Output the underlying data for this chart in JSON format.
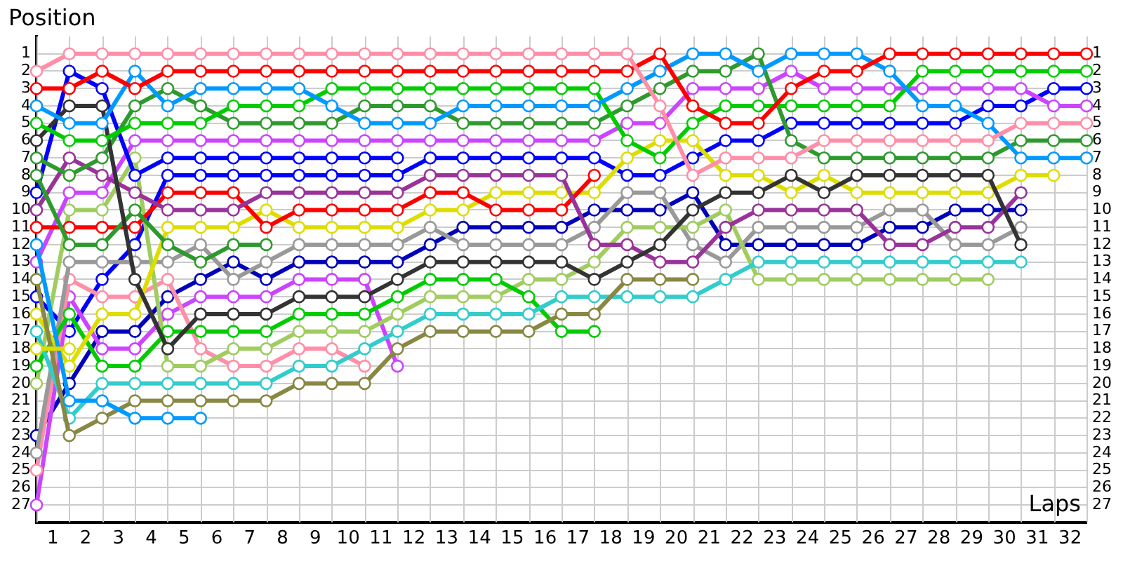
{
  "chart_data": {
    "type": "line",
    "xlabel": "Laps",
    "ylabel": "Position",
    "grid": true,
    "legend": false,
    "marker": "circle",
    "line_style": "solid",
    "x": [
      0,
      1,
      2,
      3,
      4,
      5,
      6,
      7,
      8,
      9,
      10,
      11,
      12,
      13,
      14,
      15,
      16,
      17,
      18,
      19,
      20,
      21,
      22,
      23,
      24,
      25,
      26,
      27,
      28,
      29,
      30,
      31,
      32
    ],
    "xlim": [
      0,
      32
    ],
    "xticks": [
      {
        "value": 0.5,
        "label": "1"
      },
      {
        "value": 1.5,
        "label": "2"
      },
      {
        "value": 2.5,
        "label": "3"
      },
      {
        "value": 3.5,
        "label": "4"
      },
      {
        "value": 4.5,
        "label": "5"
      },
      {
        "value": 5.5,
        "label": "6"
      },
      {
        "value": 6.5,
        "label": "7"
      },
      {
        "value": 7.5,
        "label": "8"
      },
      {
        "value": 8.5,
        "label": "9"
      },
      {
        "value": 9.5,
        "label": "10"
      },
      {
        "value": 10.5,
        "label": "11"
      },
      {
        "value": 11.5,
        "label": "12"
      },
      {
        "value": 12.5,
        "label": "13"
      },
      {
        "value": 13.5,
        "label": "14"
      },
      {
        "value": 14.5,
        "label": "15"
      },
      {
        "value": 15.5,
        "label": "16"
      },
      {
        "value": 16.5,
        "label": "17"
      },
      {
        "value": 17.5,
        "label": "18"
      },
      {
        "value": 18.5,
        "label": "19"
      },
      {
        "value": 19.5,
        "label": "20"
      },
      {
        "value": 20.5,
        "label": "21"
      },
      {
        "value": 21.5,
        "label": "22"
      },
      {
        "value": 22.5,
        "label": "23"
      },
      {
        "value": 23.5,
        "label": "24"
      },
      {
        "value": 24.5,
        "label": "25"
      },
      {
        "value": 25.5,
        "label": "26"
      },
      {
        "value": 26.5,
        "label": "27"
      },
      {
        "value": 27.5,
        "label": "28"
      },
      {
        "value": 28.5,
        "label": "29"
      },
      {
        "value": 29.5,
        "label": "30"
      },
      {
        "value": 30.5,
        "label": "31"
      },
      {
        "value": 31.5,
        "label": "32"
      }
    ],
    "ylim": [
      28,
      0
    ],
    "yticks": [
      1,
      2,
      3,
      4,
      5,
      6,
      7,
      8,
      9,
      10,
      11,
      12,
      13,
      14,
      15,
      16,
      17,
      18,
      19,
      20,
      21,
      22,
      23,
      24,
      25,
      26,
      27
    ],
    "y2lim": [
      28,
      0
    ],
    "y2ticks": [
      1,
      2,
      3,
      4,
      5,
      6,
      7,
      8,
      9,
      10,
      11,
      12,
      13,
      14,
      15,
      16,
      17,
      18,
      19,
      20,
      21,
      22,
      23,
      24,
      25,
      26,
      27
    ],
    "series": [
      {
        "color": "#dddd00",
        "values": [
          18,
          18,
          null,
          null,
          null,
          null,
          null,
          null,
          null,
          null,
          null,
          null,
          null,
          null,
          null,
          null,
          null,
          null,
          null,
          null,
          null,
          null,
          null,
          null,
          null,
          null,
          null,
          null,
          null,
          null,
          null,
          null,
          null
        ]
      },
      {
        "color": "#ff8fa8",
        "values": [
          2,
          1,
          1,
          1,
          1,
          1,
          1,
          1,
          1,
          1,
          1,
          1,
          1,
          1,
          1,
          1,
          1,
          1,
          1,
          4,
          8,
          7,
          7,
          7,
          6,
          6,
          6,
          6,
          6,
          6,
          5,
          5,
          5
        ]
      },
      {
        "color": "#ff0000",
        "values": [
          3,
          3,
          2,
          3,
          2,
          2,
          2,
          2,
          2,
          2,
          2,
          2,
          2,
          2,
          2,
          2,
          2,
          2,
          2,
          1,
          4,
          5,
          5,
          3,
          2,
          2,
          1,
          1,
          1,
          1,
          1,
          1,
          1
        ]
      },
      {
        "color": "#0099ff",
        "values": [
          4,
          5,
          5,
          2,
          4,
          3,
          3,
          3,
          3,
          4,
          5,
          5,
          5,
          4,
          4,
          4,
          4,
          4,
          3,
          2,
          1,
          1,
          2,
          1,
          1,
          1,
          2,
          4,
          4,
          5,
          7,
          7,
          7
        ]
      },
      {
        "color": "#00cc00",
        "values": [
          5,
          6,
          6,
          5,
          5,
          5,
          4,
          4,
          4,
          3,
          3,
          3,
          3,
          3,
          3,
          3,
          3,
          3,
          6,
          7,
          5,
          4,
          4,
          4,
          4,
          4,
          4,
          2,
          2,
          2,
          2,
          2,
          2
        ]
      },
      {
        "color": "#333333",
        "values": [
          6,
          4,
          4,
          14,
          18,
          16,
          16,
          16,
          15,
          15,
          15,
          14,
          13,
          13,
          13,
          13,
          13,
          14,
          13,
          12,
          10,
          9,
          9,
          8,
          9,
          8,
          8,
          8,
          8,
          8,
          12,
          null,
          null
        ]
      },
      {
        "color": "#2e9a2e",
        "values": [
          7,
          8,
          7,
          4,
          3,
          4,
          5,
          5,
          5,
          5,
          4,
          4,
          4,
          5,
          5,
          5,
          5,
          5,
          4,
          3,
          2,
          2,
          1,
          6,
          7,
          7,
          7,
          7,
          7,
          7,
          6,
          6,
          6
        ]
      },
      {
        "color": "#2e9a2e",
        "values": [
          8,
          12,
          12,
          10,
          12,
          13,
          12,
          12,
          null,
          null,
          null,
          null,
          null,
          null,
          null,
          null,
          null,
          null,
          null,
          null,
          null,
          null,
          null,
          null,
          null,
          null,
          null,
          null,
          null,
          null,
          null,
          null,
          null
        ]
      },
      {
        "color": "#0000ff",
        "values": [
          9,
          2,
          3,
          8,
          7,
          7,
          7,
          7,
          7,
          7,
          7,
          7,
          null,
          null,
          null,
          null,
          null,
          null,
          null,
          null,
          null,
          null,
          null,
          null,
          null,
          null,
          null,
          null,
          null,
          null,
          null,
          null,
          null
        ]
      },
      {
        "color": "#993399",
        "values": [
          10,
          7,
          8,
          9,
          10,
          10,
          10,
          9,
          9,
          9,
          9,
          9,
          8,
          8,
          8,
          8,
          8,
          12,
          12,
          13,
          13,
          11,
          10,
          10,
          10,
          10,
          12,
          12,
          11,
          11,
          9,
          null,
          null
        ]
      },
      {
        "color": "#ff0000",
        "values": [
          11,
          11,
          11,
          11,
          9,
          9,
          9,
          11,
          10,
          10,
          10,
          10,
          9,
          9,
          10,
          10,
          10,
          8,
          null,
          null,
          null,
          null,
          null,
          null,
          null,
          null,
          null,
          null,
          null,
          null,
          null,
          null,
          null
        ]
      },
      {
        "color": "#0099ff",
        "values": [
          12,
          21,
          21,
          22,
          22,
          22,
          null,
          null,
          null,
          null,
          null,
          null,
          null,
          null,
          null,
          null,
          null,
          null,
          null,
          null,
          null,
          null,
          null,
          null,
          null,
          null,
          null,
          null,
          null,
          null,
          null,
          null,
          null
        ]
      },
      {
        "color": "#cc44ff",
        "values": [
          13,
          9,
          9,
          6,
          6,
          6,
          6,
          6,
          6,
          6,
          6,
          6,
          6,
          6,
          6,
          6,
          6,
          6,
          5,
          5,
          3,
          3,
          3,
          2,
          3,
          3,
          3,
          3,
          3,
          3,
          3,
          4,
          4
        ]
      },
      {
        "color": "#888844",
        "values": [
          14,
          23,
          22,
          21,
          21,
          21,
          21,
          21,
          20,
          20,
          20,
          18,
          17,
          17,
          17,
          17,
          16,
          16,
          14,
          14,
          14,
          null,
          null,
          null,
          null,
          null,
          null,
          null,
          null,
          null,
          null,
          null,
          null
        ]
      },
      {
        "color": "#dddd00",
        "values": [
          16,
          19,
          16,
          16,
          11,
          11,
          11,
          10,
          11,
          11,
          11,
          11,
          10,
          10,
          9,
          9,
          9,
          9,
          7,
          6,
          6,
          8,
          8,
          9,
          8,
          9,
          9,
          9,
          9,
          9,
          8,
          8,
          null
        ]
      },
      {
        "color": "#33cccc",
        "values": [
          17,
          22,
          20,
          20,
          20,
          20,
          20,
          20,
          19,
          19,
          18,
          17,
          16,
          16,
          16,
          16,
          15,
          15,
          15,
          15,
          15,
          14,
          13,
          13,
          13,
          13,
          13,
          13,
          13,
          13,
          13,
          null,
          null
        ]
      },
      {
        "color": "#00cc00",
        "values": [
          19,
          16,
          19,
          19,
          17,
          17,
          17,
          17,
          16,
          16,
          16,
          15,
          14,
          14,
          14,
          15,
          17,
          17,
          null,
          null,
          null,
          null,
          null,
          null,
          null,
          null,
          null,
          null,
          null,
          null,
          null,
          null,
          null
        ]
      },
      {
        "color": "#a0cc60",
        "values": [
          20,
          10,
          10,
          7,
          19,
          19,
          18,
          18,
          17,
          17,
          17,
          16,
          15,
          15,
          15,
          14,
          14,
          13,
          11,
          11,
          11,
          10,
          14,
          14,
          14,
          14,
          14,
          14,
          14,
          14,
          null,
          null,
          null
        ]
      },
      {
        "color": "#999999",
        "values": [
          24,
          13,
          13,
          13,
          13,
          12,
          14,
          13,
          12,
          12,
          12,
          12,
          11,
          12,
          12,
          12,
          12,
          11,
          9,
          9,
          12,
          13,
          11,
          11,
          11,
          11,
          10,
          10,
          12,
          12,
          11,
          null,
          null
        ]
      },
      {
        "color": "#ff8fa8",
        "values": [
          25,
          14,
          15,
          15,
          14,
          18,
          19,
          19,
          18,
          18,
          19,
          null,
          null,
          null,
          null,
          null,
          null,
          null,
          null,
          null,
          null,
          null,
          null,
          null,
          null,
          null,
          null,
          null,
          null,
          null,
          null,
          null,
          null
        ]
      },
      {
        "color": "#cc44ff",
        "values": [
          27,
          15,
          18,
          18,
          16,
          15,
          15,
          15,
          14,
          14,
          14,
          19,
          null,
          null,
          null,
          null,
          null,
          null,
          null,
          null,
          null,
          null,
          null,
          null,
          null,
          null,
          null,
          null,
          null,
          null,
          null,
          null,
          null
        ]
      },
      {
        "color": "#0000ff",
        "values": [
          15,
          17,
          14,
          12,
          8,
          8,
          8,
          8,
          8,
          8,
          8,
          8,
          7,
          7,
          7,
          7,
          7,
          7,
          8,
          8,
          7,
          6,
          6,
          5,
          5,
          5,
          5,
          5,
          5,
          4,
          4,
          3,
          3
        ]
      },
      {
        "color": "#0000bb",
        "values": [
          23,
          20,
          17,
          17,
          15,
          14,
          13,
          14,
          13,
          13,
          13,
          13,
          12,
          11,
          11,
          11,
          11,
          10,
          10,
          10,
          9,
          12,
          12,
          12,
          12,
          12,
          11,
          11,
          10,
          10,
          10,
          null,
          null
        ]
      }
    ]
  }
}
